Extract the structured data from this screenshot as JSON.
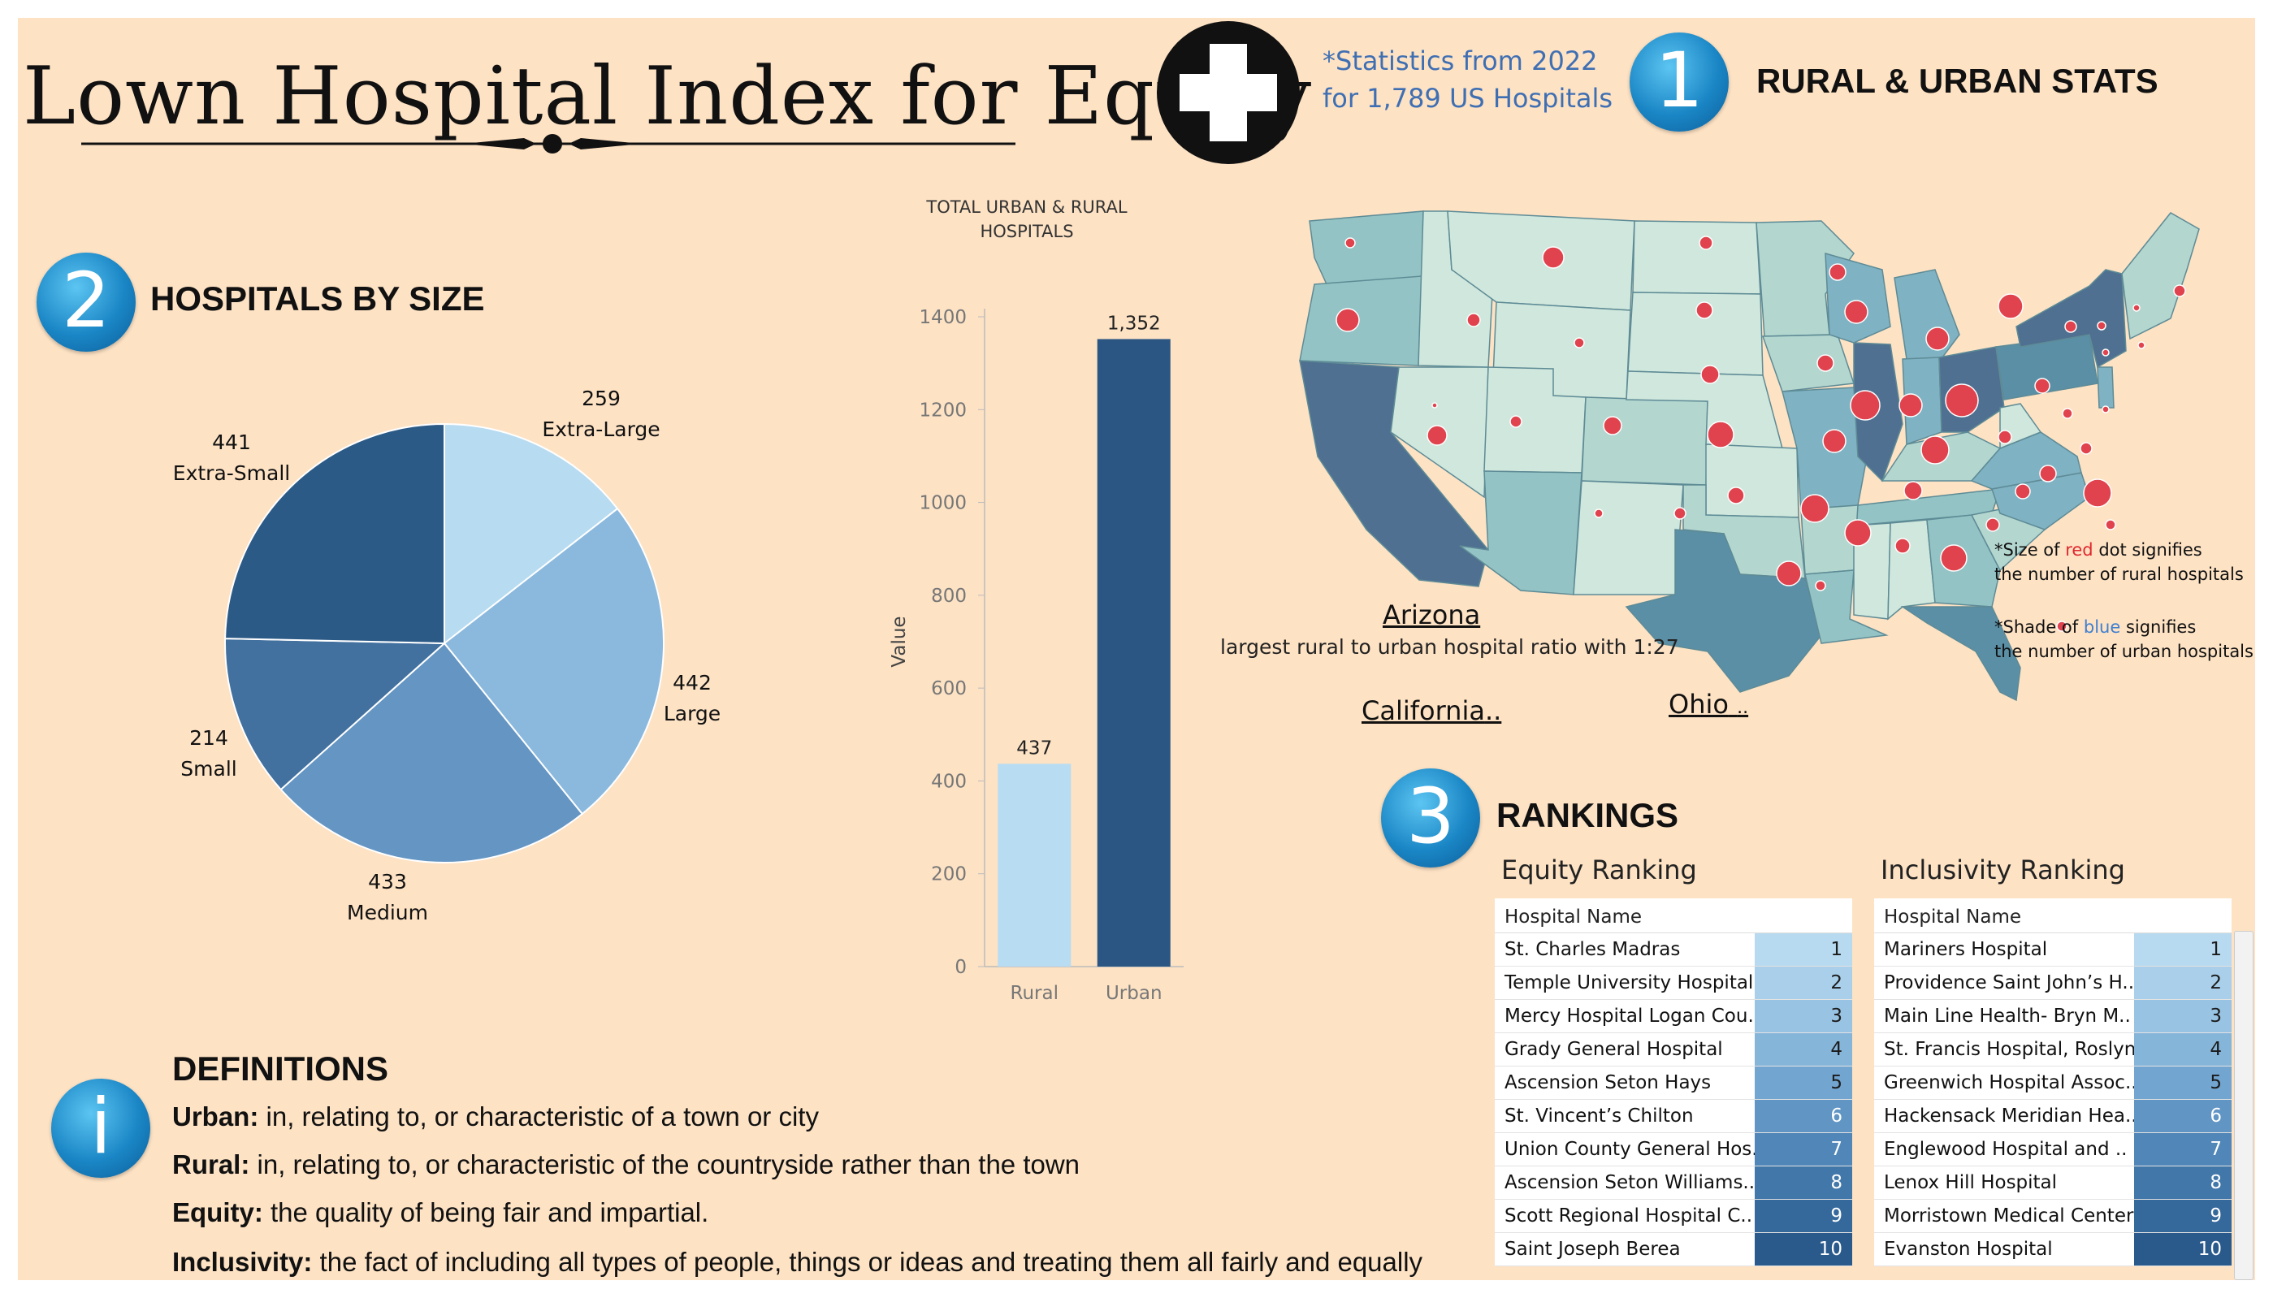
{
  "header": {
    "title": "Lown Hospital Index for Equity",
    "stats_note": [
      "*Statistics from 2022",
      "for 1,789 US Hospitals"
    ]
  },
  "sections": {
    "rural_urban": {
      "number": "1",
      "heading": "RURAL & URBAN STATS"
    },
    "size": {
      "number": "2",
      "heading": "HOSPITALS BY SIZE"
    },
    "rankings": {
      "number": "3",
      "heading": "RANKINGS"
    },
    "definitions": {
      "icon_letter": "i",
      "heading": "DEFINITIONS"
    }
  },
  "chart_data": [
    {
      "type": "pie",
      "title": "HOSPITALS BY SIZE",
      "slices": [
        {
          "label": "Extra-Large",
          "value": 259,
          "color": "#b7dbf1"
        },
        {
          "label": "Large",
          "value": 442,
          "color": "#8bb9de"
        },
        {
          "label": "Medium",
          "value": 433,
          "color": "#6495c3"
        },
        {
          "label": "Small",
          "value": 214,
          "color": "#42709f"
        },
        {
          "label": "Extra-Small",
          "value": 441,
          "color": "#2c5a87"
        }
      ]
    },
    {
      "type": "bar",
      "title": "TOTAL URBAN & RURAL HOSPITALS",
      "categories": [
        "Rural",
        "Urban"
      ],
      "values": [
        437,
        1352
      ],
      "value_labels": [
        "437",
        "1,352"
      ],
      "colors": [
        "#b8dcf2",
        "#2b5683"
      ],
      "ylabel": "Value",
      "xlabel": "",
      "ylim": [
        0,
        1400
      ],
      "yticks": [
        0,
        200,
        400,
        600,
        800,
        1000,
        1200,
        1400
      ]
    }
  ],
  "map": {
    "highlight_state": "Arizona",
    "highlight_desc": "largest rural to urban hospital ratio with 1:27",
    "labels": [
      {
        "text": "California",
        "suffix": ".."
      },
      {
        "text": "Ohio",
        "suffix": ".."
      }
    ],
    "notes": [
      {
        "pre": "*Size of ",
        "colored": "red",
        "post": " dot signifies",
        "line2": "the number of rural hospitals"
      },
      {
        "pre": "*Shade of ",
        "colored": "blue",
        "post": " signifies",
        "line2": "the number of urban hospitals"
      }
    ],
    "colors": {
      "rural_dot": "#e0434e",
      "urban_low": "#cfe6dc",
      "urban_high": "#466a8a"
    }
  },
  "rankings": {
    "equity": {
      "title": "Equity Ranking",
      "column_header": "Hospital Name",
      "rows": [
        {
          "name": "St. Charles Madras",
          "rank": "1"
        },
        {
          "name": "Temple University Hospital",
          "rank": "2"
        },
        {
          "name": "Mercy Hospital Logan Cou..",
          "rank": "3"
        },
        {
          "name": "Grady General Hospital",
          "rank": "4"
        },
        {
          "name": "Ascension Seton Hays",
          "rank": "5"
        },
        {
          "name": "St. Vincent’s Chilton",
          "rank": "6"
        },
        {
          "name": "Union County General Hos..",
          "rank": "7"
        },
        {
          "name": "Ascension Seton Williams..",
          "rank": "8"
        },
        {
          "name": "Scott Regional Hospital C..",
          "rank": "9"
        },
        {
          "name": "Saint Joseph Berea",
          "rank": "10"
        }
      ]
    },
    "inclusivity": {
      "title": "Inclusivity Ranking",
      "column_header": "Hospital Name",
      "rows": [
        {
          "name": "Mariners Hospital",
          "rank": "1"
        },
        {
          "name": "Providence Saint John’s H..",
          "rank": "2"
        },
        {
          "name": "Main Line Health- Bryn M..",
          "rank": "3"
        },
        {
          "name": "St. Francis Hospital, Roslyn",
          "rank": "4"
        },
        {
          "name": "Greenwich Hospital Assoc..",
          "rank": "5"
        },
        {
          "name": "Hackensack Meridian Hea..",
          "rank": "6"
        },
        {
          "name": "Englewood Hospital and ..",
          "rank": "7"
        },
        {
          "name": "Lenox Hill Hospital",
          "rank": "8"
        },
        {
          "name": "Morristown Medical Center",
          "rank": "9"
        },
        {
          "name": "Evanston Hospital",
          "rank": "10"
        }
      ]
    },
    "rank_colors": [
      "#b8daf0",
      "#a9cfea",
      "#98c3e3",
      "#86b5da",
      "#72a5d0",
      "#6095c4",
      "#5086b8",
      "#4277aa",
      "#36699b",
      "#2a5a8b"
    ]
  },
  "definitions": [
    {
      "term": "Urban:",
      "text": " in, relating to, or characteristic of a town or city"
    },
    {
      "term": "Rural:",
      "text": " in, relating to, or characteristic of the countryside rather than the town"
    },
    {
      "term": "Equity:",
      "text": " the quality of being fair and impartial."
    },
    {
      "term": "Inclusivity:",
      "text": " the fact of including all types of people, things or ideas and treating them all fairly and equally"
    }
  ]
}
